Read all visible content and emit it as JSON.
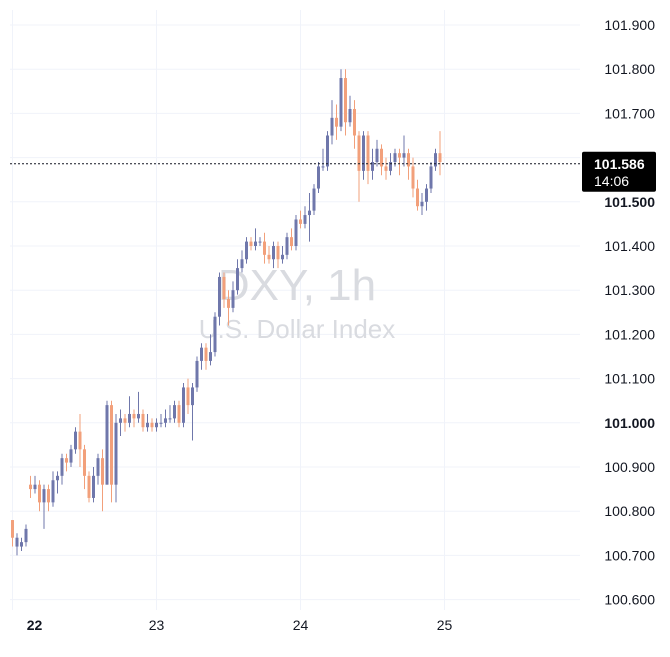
{
  "watermark": {
    "symbol": "DXY, 1h",
    "description": "U.S. Dollar Index"
  },
  "last_price": {
    "value": "101.586",
    "countdown": "14:06"
  },
  "colors": {
    "up": "#6f77ab",
    "down": "#f2a07b",
    "grid": "#f0f3fa",
    "text": "#131722",
    "price_line": "#131722",
    "label_bg": "#000000"
  },
  "chart_data": {
    "type": "candlestick",
    "title": "",
    "ylim": [
      100.56,
      101.94
    ],
    "y_ticks": [
      "101.900",
      "101.800",
      "101.700",
      "101.600",
      "101.500",
      "101.400",
      "101.300",
      "101.200",
      "101.100",
      "101.000",
      "100.900",
      "100.800",
      "100.700",
      "100.600"
    ],
    "y_ticks_bold": [
      "101.500",
      "101.000"
    ],
    "x_ticks": [
      {
        "label": "22",
        "bold": true,
        "index": 0
      },
      {
        "label": "23",
        "bold": false,
        "index": 32
      },
      {
        "label": "24",
        "bold": false,
        "index": 64
      },
      {
        "label": "25",
        "bold": false,
        "index": 96
      }
    ],
    "last_price": 101.586,
    "candles": [
      [
        100.78,
        100.74,
        100.78,
        100.72
      ],
      [
        100.72,
        100.74,
        100.75,
        100.7
      ],
      [
        100.72,
        100.73,
        100.74,
        100.71
      ],
      [
        100.73,
        100.76,
        100.77,
        100.72
      ],
      [
        100.86,
        100.85,
        100.88,
        100.83
      ],
      [
        100.85,
        100.86,
        100.88,
        100.84
      ],
      [
        100.86,
        100.82,
        100.87,
        100.8
      ],
      [
        100.82,
        100.85,
        100.86,
        100.76
      ],
      [
        100.85,
        100.82,
        100.86,
        100.8
      ],
      [
        100.82,
        100.87,
        100.89,
        100.81
      ],
      [
        100.87,
        100.88,
        100.89,
        100.84
      ],
      [
        100.88,
        100.92,
        100.93,
        100.86
      ],
      [
        100.92,
        100.91,
        100.93,
        100.89
      ],
      [
        100.91,
        100.94,
        100.95,
        100.9
      ],
      [
        100.94,
        100.98,
        100.99,
        100.93
      ],
      [
        100.98,
        100.94,
        101.02,
        100.9
      ],
      [
        100.94,
        100.88,
        100.95,
        100.85
      ],
      [
        100.88,
        100.83,
        100.89,
        100.82
      ],
      [
        100.83,
        100.88,
        100.9,
        100.82
      ],
      [
        100.88,
        100.92,
        100.93,
        100.86
      ],
      [
        100.92,
        100.86,
        100.94,
        100.8
      ],
      [
        100.86,
        101.04,
        101.05,
        100.86
      ],
      [
        101.04,
        100.86,
        101.05,
        100.82
      ],
      [
        100.86,
        101.0,
        101.02,
        100.82
      ],
      [
        101.0,
        101.01,
        101.03,
        100.97
      ],
      [
        101.01,
        101.0,
        101.02,
        100.98
      ],
      [
        101.0,
        101.02,
        101.06,
        100.99
      ],
      [
        101.02,
        101.01,
        101.03,
        100.99
      ],
      [
        101.01,
        101.02,
        101.07,
        101.0
      ],
      [
        101.02,
        100.99,
        101.03,
        100.98
      ],
      [
        100.99,
        101.0,
        101.02,
        100.98
      ],
      [
        101.0,
        100.99,
        101.01,
        100.98
      ],
      [
        100.99,
        101.0,
        101.01,
        100.98
      ],
      [
        101.0,
        101.0,
        101.02,
        100.99
      ],
      [
        101.0,
        101.01,
        101.03,
        100.99
      ],
      [
        101.01,
        101.01,
        101.04,
        101.0
      ],
      [
        101.01,
        101.04,
        101.05,
        101.0
      ],
      [
        101.04,
        101.0,
        101.05,
        100.99
      ],
      [
        101.0,
        101.08,
        101.09,
        100.99
      ],
      [
        101.08,
        101.04,
        101.1,
        101.02
      ],
      [
        101.04,
        101.08,
        101.09,
        100.96
      ],
      [
        101.08,
        101.14,
        101.15,
        101.07
      ],
      [
        101.14,
        101.17,
        101.18,
        101.12
      ],
      [
        101.17,
        101.14,
        101.18,
        101.12
      ],
      [
        101.14,
        101.16,
        101.2,
        101.13
      ],
      [
        101.16,
        101.24,
        101.25,
        101.15
      ],
      [
        101.24,
        101.33,
        101.34,
        101.22
      ],
      [
        101.33,
        101.28,
        101.34,
        101.26
      ],
      [
        101.28,
        101.26,
        101.3,
        101.22
      ],
      [
        101.26,
        101.3,
        101.32,
        101.25
      ],
      [
        101.3,
        101.35,
        101.37,
        101.29
      ],
      [
        101.35,
        101.37,
        101.39,
        101.34
      ],
      [
        101.37,
        101.41,
        101.42,
        101.36
      ],
      [
        101.41,
        101.4,
        101.42,
        101.39
      ],
      [
        101.4,
        101.41,
        101.44,
        101.39
      ],
      [
        101.41,
        101.41,
        101.42,
        101.4
      ],
      [
        101.41,
        101.38,
        101.43,
        101.36
      ],
      [
        101.38,
        101.37,
        101.4,
        101.36
      ],
      [
        101.37,
        101.4,
        101.41,
        101.35
      ],
      [
        101.4,
        101.37,
        101.41,
        101.35
      ],
      [
        101.37,
        101.38,
        101.4,
        101.36
      ],
      [
        101.38,
        101.42,
        101.43,
        101.37
      ],
      [
        101.42,
        101.4,
        101.44,
        101.39
      ],
      [
        101.4,
        101.46,
        101.47,
        101.39
      ],
      [
        101.46,
        101.45,
        101.48,
        101.44
      ],
      [
        101.45,
        101.47,
        101.49,
        101.44
      ],
      [
        101.47,
        101.48,
        101.52,
        101.41
      ],
      [
        101.48,
        101.53,
        101.54,
        101.47
      ],
      [
        101.53,
        101.58,
        101.59,
        101.52
      ],
      [
        101.58,
        101.58,
        101.62,
        101.57
      ],
      [
        101.58,
        101.65,
        101.66,
        101.57
      ],
      [
        101.65,
        101.69,
        101.73,
        101.63
      ],
      [
        101.69,
        101.67,
        101.72,
        101.64
      ],
      [
        101.67,
        101.78,
        101.8,
        101.66
      ],
      [
        101.78,
        101.68,
        101.8,
        101.65
      ],
      [
        101.68,
        101.71,
        101.74,
        101.67
      ],
      [
        101.71,
        101.65,
        101.73,
        101.62
      ],
      [
        101.65,
        101.57,
        101.66,
        101.5
      ],
      [
        101.57,
        101.65,
        101.66,
        101.55
      ],
      [
        101.65,
        101.57,
        101.66,
        101.54
      ],
      [
        101.57,
        101.59,
        101.62,
        101.55
      ],
      [
        101.59,
        101.62,
        101.64,
        101.58
      ],
      [
        101.62,
        101.58,
        101.63,
        101.56
      ],
      [
        101.58,
        101.57,
        101.6,
        101.55
      ],
      [
        101.57,
        101.59,
        101.61,
        101.56
      ],
      [
        101.59,
        101.61,
        101.62,
        101.58
      ],
      [
        101.61,
        101.6,
        101.62,
        101.56
      ],
      [
        101.6,
        101.61,
        101.65,
        101.58
      ],
      [
        101.61,
        101.58,
        101.62,
        101.55
      ],
      [
        101.58,
        101.53,
        101.6,
        101.51
      ],
      [
        101.53,
        101.49,
        101.55,
        101.48
      ],
      [
        101.49,
        101.5,
        101.52,
        101.47
      ],
      [
        101.5,
        101.53,
        101.54,
        101.48
      ],
      [
        101.53,
        101.58,
        101.59,
        101.52
      ],
      [
        101.58,
        101.61,
        101.62,
        101.57
      ],
      [
        101.61,
        101.59,
        101.66,
        101.56
      ]
    ]
  }
}
